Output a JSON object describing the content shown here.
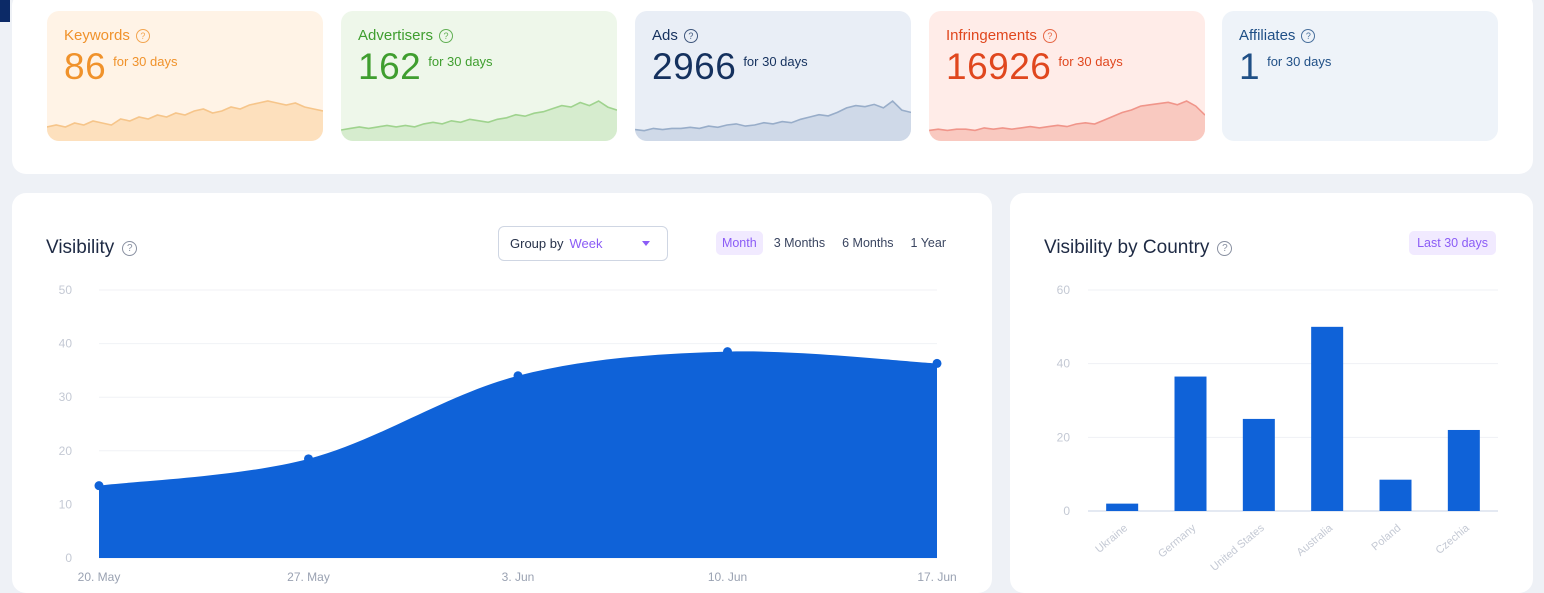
{
  "kpis": [
    {
      "id": "keywords",
      "title": "Keywords",
      "value": "86",
      "period": "for 30 days",
      "color": "#f0922b",
      "bg": "#fff3e6",
      "spark_fill": "#fde0bd",
      "spark_line": "#f6c58a",
      "spark": [
        3,
        4,
        3,
        5,
        4,
        6,
        5,
        4,
        7,
        6,
        8,
        7,
        9,
        8,
        10,
        9,
        11,
        12,
        10,
        11,
        13,
        12,
        14,
        15,
        16,
        15,
        14,
        15,
        13,
        12,
        11
      ]
    },
    {
      "id": "advertisers",
      "title": "Advertisers",
      "value": "162",
      "period": "for 30 days",
      "color": "#3f9e2f",
      "bg": "#eef7ea",
      "spark_fill": "#d6ecce",
      "spark_line": "#9fd38e",
      "spark": [
        2,
        3,
        4,
        3,
        4,
        5,
        4,
        5,
        4,
        6,
        7,
        6,
        8,
        7,
        9,
        8,
        7,
        9,
        10,
        12,
        11,
        13,
        14,
        16,
        18,
        17,
        20,
        18,
        21,
        17,
        15
      ]
    },
    {
      "id": "ads",
      "title": "Ads",
      "value": "2966",
      "period": "for 30 days",
      "color": "#15315e",
      "bg": "#e9eef6",
      "spark_fill": "#cfd9e8",
      "spark_line": "#98adc9",
      "spark": [
        3,
        2,
        4,
        3,
        4,
        4,
        5,
        4,
        6,
        5,
        7,
        8,
        6,
        7,
        9,
        8,
        10,
        9,
        12,
        14,
        16,
        15,
        18,
        22,
        24,
        23,
        25,
        22,
        28,
        20,
        18
      ]
    },
    {
      "id": "infringements",
      "title": "Infringements",
      "value": "16926",
      "period": "for 30 days",
      "color": "#e0471e",
      "bg": "#ffece8",
      "spark_fill": "#f9c9c0",
      "spark_line": "#f0958a",
      "spark": [
        2,
        3,
        2,
        3,
        3,
        2,
        4,
        3,
        4,
        3,
        4,
        5,
        4,
        5,
        6,
        5,
        7,
        8,
        7,
        10,
        13,
        16,
        18,
        21,
        22,
        23,
        24,
        22,
        25,
        21,
        14
      ]
    },
    {
      "id": "affiliates",
      "title": "Affiliates",
      "value": "1",
      "period": "for 30 days",
      "color": "#1f4f86",
      "bg": "#eef3f9",
      "spark_fill": "#eef3f9",
      "spark_line": "#eef3f9",
      "spark": []
    }
  ],
  "visibility": {
    "title": "Visibility",
    "group_label": "Group by",
    "group_value": "Week",
    "range_tabs": [
      "Month",
      "3 Months",
      "6 Months",
      "1 Year"
    ],
    "active_tab": "Month"
  },
  "country": {
    "title": "Visibility by Country",
    "range_label": "Last 30 days"
  },
  "chart_data": [
    {
      "type": "area",
      "title": "Visibility",
      "x": [
        "20. May",
        "27. May",
        "3. Jun",
        "10. Jun",
        "17. Jun"
      ],
      "values": [
        13.5,
        18.5,
        34,
        38.5,
        36.3
      ],
      "ylim": [
        0,
        50
      ],
      "yticks": [
        0,
        10,
        20,
        30,
        40,
        50
      ],
      "grid": true,
      "color": "#0f62d8"
    },
    {
      "type": "bar",
      "title": "Visibility by Country",
      "categories": [
        "Ukraine",
        "Germany",
        "United States",
        "Australia",
        "Poland",
        "Czechia"
      ],
      "values": [
        2,
        36.5,
        25,
        50,
        8.5,
        22
      ],
      "ylim": [
        0,
        60
      ],
      "yticks": [
        0,
        20,
        40,
        60
      ],
      "grid": true,
      "color": "#0f62d8"
    }
  ]
}
